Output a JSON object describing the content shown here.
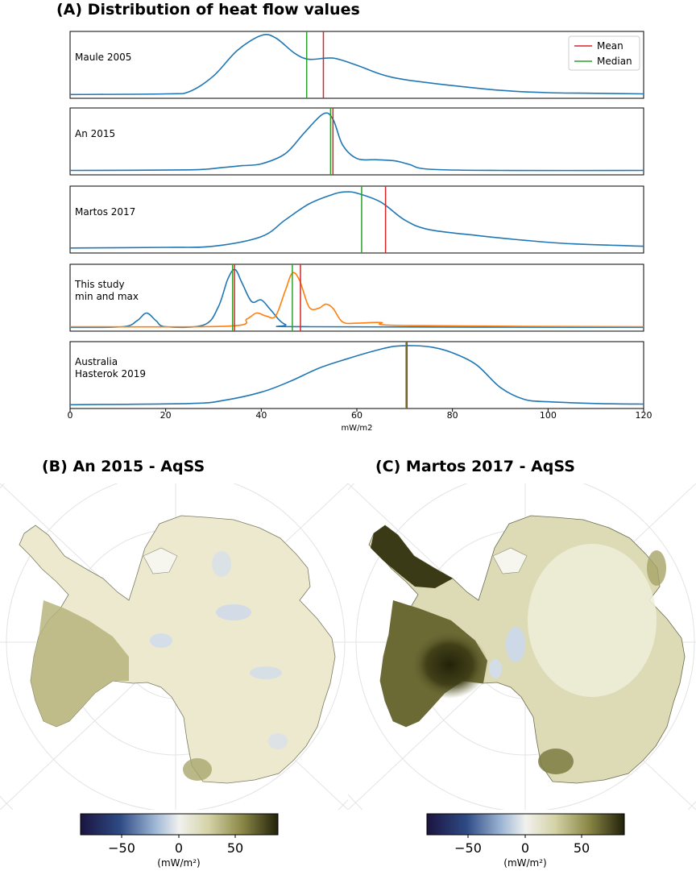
{
  "panel_a": {
    "title": "(A) Distribution of heat flow values",
    "xlabel": "mW/m2",
    "xticks": [
      "0",
      "20",
      "40",
      "60",
      "80",
      "100",
      "120"
    ],
    "legend": {
      "mean": "Mean",
      "median": "Median"
    }
  },
  "panel_b": {
    "title": "(B) An 2015 - AqSS"
  },
  "panel_c": {
    "title": "(C) Martos 2017 - AqSS"
  },
  "colorbar": {
    "ticks": [
      "−50",
      "0",
      "50"
    ],
    "unit": "(mW/m²)"
  },
  "colors": {
    "blue_curve": "#1f77b4",
    "orange_curve": "#ff7f0e",
    "mean_line": "#d62728",
    "median_line": "#2ca02c",
    "map_neutral": "#f2f0dd",
    "map_positive": "#2b2a0e",
    "map_negative": "#1a1a4a"
  },
  "chart_data": [
    {
      "type": "line",
      "label": "Maule 2005",
      "xlim": [
        0,
        120
      ],
      "series": [
        {
          "points": [
            [
              0,
              0.01
            ],
            [
              20,
              0.02
            ],
            [
              25,
              0.06
            ],
            [
              30,
              0.32
            ],
            [
              35,
              0.75
            ],
            [
              40,
              1.0
            ],
            [
              43,
              0.96
            ],
            [
              47,
              0.7
            ],
            [
              50,
              0.6
            ],
            [
              55,
              0.62
            ],
            [
              60,
              0.5
            ],
            [
              65,
              0.35
            ],
            [
              70,
              0.26
            ],
            [
              80,
              0.16
            ],
            [
              90,
              0.08
            ],
            [
              100,
              0.04
            ],
            [
              110,
              0.03
            ],
            [
              120,
              0.02
            ]
          ]
        }
      ],
      "mean": 53.0,
      "median": 49.5
    },
    {
      "type": "line",
      "label": "An 2015",
      "xlim": [
        0,
        120
      ],
      "series": [
        {
          "points": [
            [
              0,
              0.02
            ],
            [
              25,
              0.03
            ],
            [
              32,
              0.07
            ],
            [
              36,
              0.1
            ],
            [
              40,
              0.13
            ],
            [
              45,
              0.3
            ],
            [
              49,
              0.65
            ],
            [
              53,
              0.97
            ],
            [
              55,
              0.88
            ],
            [
              57,
              0.45
            ],
            [
              60,
              0.22
            ],
            [
              64,
              0.2
            ],
            [
              68,
              0.18
            ],
            [
              71,
              0.12
            ],
            [
              75,
              0.04
            ],
            [
              90,
              0.02
            ],
            [
              120,
              0.02
            ]
          ]
        }
      ],
      "mean": 55.0,
      "median": 54.5
    },
    {
      "type": "line",
      "label": "Martos 2017",
      "xlim": [
        0,
        120
      ],
      "series": [
        {
          "points": [
            [
              0,
              0.03
            ],
            [
              20,
              0.04
            ],
            [
              30,
              0.06
            ],
            [
              40,
              0.22
            ],
            [
              45,
              0.5
            ],
            [
              50,
              0.77
            ],
            [
              55,
              0.93
            ],
            [
              57.5,
              0.97
            ],
            [
              60,
              0.95
            ],
            [
              65,
              0.8
            ],
            [
              70,
              0.5
            ],
            [
              75,
              0.34
            ],
            [
              85,
              0.24
            ],
            [
              95,
              0.16
            ],
            [
              105,
              0.1
            ],
            [
              120,
              0.06
            ]
          ]
        }
      ],
      "mean": 66.0,
      "median": 61.0
    },
    {
      "type": "line",
      "label": "This study\nmin and max",
      "xlim": [
        0,
        120
      ],
      "series": [
        {
          "name": "min",
          "points": [
            [
              0,
              0.01
            ],
            [
              11,
              0.02
            ],
            [
              14,
              0.12
            ],
            [
              16,
              0.25
            ],
            [
              18,
              0.12
            ],
            [
              20,
              0.02
            ],
            [
              28,
              0.05
            ],
            [
              31,
              0.35
            ],
            [
              33,
              0.82
            ],
            [
              34.5,
              0.98
            ],
            [
              36,
              0.75
            ],
            [
              38,
              0.44
            ],
            [
              40,
              0.47
            ],
            [
              42,
              0.3
            ],
            [
              45,
              0.06
            ],
            [
              50,
              0.02
            ],
            [
              120,
              0.01
            ]
          ]
        },
        {
          "name": "max",
          "points": [
            [
              0,
              0.02
            ],
            [
              33,
              0.03
            ],
            [
              37,
              0.15
            ],
            [
              39,
              0.25
            ],
            [
              41,
              0.2
            ],
            [
              43,
              0.2
            ],
            [
              45,
              0.62
            ],
            [
              46.5,
              0.92
            ],
            [
              48,
              0.8
            ],
            [
              50,
              0.35
            ],
            [
              52,
              0.33
            ],
            [
              53.5,
              0.4
            ],
            [
              55,
              0.33
            ],
            [
              57,
              0.1
            ],
            [
              60,
              0.08
            ],
            [
              65,
              0.09
            ],
            [
              70,
              0.04
            ],
            [
              120,
              0.02
            ]
          ]
        }
      ],
      "extra_lines": [
        {
          "kind": "median",
          "x": 34.0
        },
        {
          "kind": "mean",
          "x": 34.4
        },
        {
          "kind": "median",
          "x": 46.5
        },
        {
          "kind": "mean",
          "x": 48.2
        }
      ]
    },
    {
      "type": "line",
      "label": "Australia\nHasterok 2019",
      "xlim": [
        0,
        120
      ],
      "xticks": [
        0,
        20,
        40,
        60,
        80,
        100,
        120
      ],
      "series": [
        {
          "points": [
            [
              0,
              0.01
            ],
            [
              25,
              0.03
            ],
            [
              32,
              0.08
            ],
            [
              40,
              0.22
            ],
            [
              46,
              0.4
            ],
            [
              52,
              0.62
            ],
            [
              58,
              0.78
            ],
            [
              64,
              0.92
            ],
            [
              68,
              0.99
            ],
            [
              72,
              1.0
            ],
            [
              76,
              0.97
            ],
            [
              80,
              0.88
            ],
            [
              85,
              0.68
            ],
            [
              90,
              0.3
            ],
            [
              95,
              0.1
            ],
            [
              100,
              0.06
            ],
            [
              110,
              0.03
            ],
            [
              120,
              0.02
            ]
          ]
        }
      ],
      "mean": 70.5,
      "median": 70.3
    }
  ]
}
